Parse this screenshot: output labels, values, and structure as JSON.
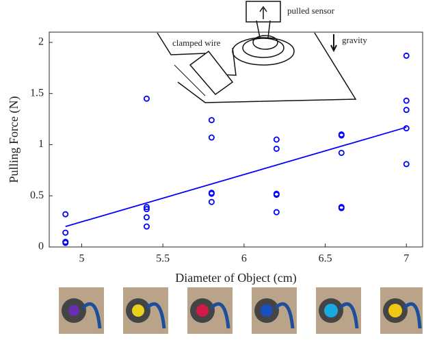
{
  "chart_data": {
    "type": "scatter",
    "xlabel": "Diameter of Object (cm)",
    "ylabel": "Pulling Force (N)",
    "xlim": [
      4.8,
      7.1
    ],
    "xticks": [
      5,
      5.5,
      6,
      6.5,
      7
    ],
    "ylim": [
      0,
      2.1
    ],
    "yticks": [
      0,
      0.5,
      1,
      1.5,
      2
    ],
    "grid": false,
    "series": [
      {
        "type": "scatter",
        "color": "#0000ff",
        "x": [
          4.9,
          4.9,
          4.9,
          4.9,
          5.4,
          5.4,
          5.4,
          5.4,
          5.4,
          5.8,
          5.8,
          5.8,
          5.8,
          5.8,
          6.2,
          6.2,
          6.2,
          6.2,
          6.2,
          6.6,
          6.6,
          6.6,
          6.6,
          6.6,
          7,
          7,
          7,
          7,
          7
        ],
        "values": [
          0.32,
          0.14,
          0.05,
          0.04,
          1.45,
          0.39,
          0.37,
          0.29,
          0.2,
          1.24,
          1.07,
          0.53,
          0.52,
          0.44,
          1.05,
          0.96,
          0.52,
          0.51,
          0.34,
          1.1,
          1.09,
          0.92,
          0.39,
          0.38,
          1.87,
          1.43,
          1.34,
          1.16,
          0.81
        ]
      },
      {
        "type": "line",
        "color": "#0000ff",
        "x": [
          4.9,
          7
        ],
        "values": [
          0.2,
          1.17
        ]
      }
    ],
    "annotations": [
      "pulled sensor",
      "gravity",
      "clamped wire"
    ]
  }
}
